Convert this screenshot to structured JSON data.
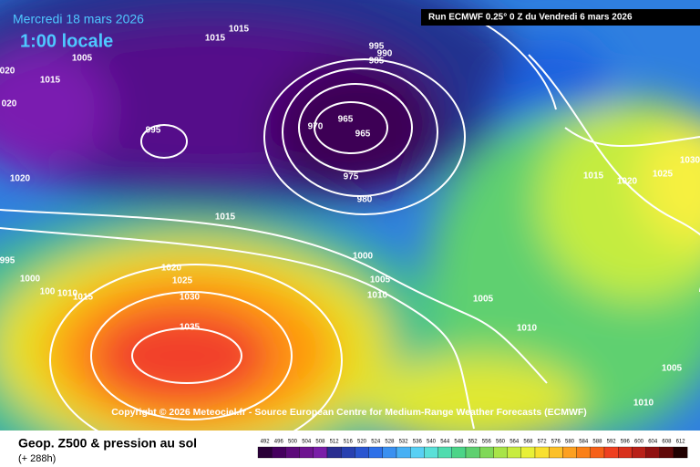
{
  "header": {
    "title": "Mercredi 18 mars 2026",
    "local_time": "1:00 locale",
    "run": "Run ECMWF 0.25° 0 Z du Vendredi 6 mars 2026"
  },
  "map": {
    "copyright": "Copyright © 2026 Meteociel.fr - Source European Centre for Medium-Range Weather Forecasts (ECMWF)",
    "isobar_labels": [
      "1015",
      "1015",
      "1005",
      "020",
      "1015",
      "020",
      "995",
      "1020",
      "995",
      "990",
      "985",
      "970",
      "965",
      "965",
      "975",
      "980",
      "1015",
      "1000",
      "1005",
      "1010",
      "995",
      "1000",
      "100",
      "1010",
      "1015",
      "1020",
      "1025",
      "1030",
      "1035",
      "1005",
      "1010",
      "1015",
      "1020",
      "1025",
      "1030",
      "1005",
      "1010"
    ]
  },
  "footer": {
    "title": "Geop. Z500 & pression au sol",
    "lead": "(+ 288h)",
    "colorbar": {
      "labels": [
        492,
        496,
        500,
        504,
        508,
        512,
        516,
        520,
        524,
        528,
        532,
        536,
        540,
        544,
        548,
        552,
        556,
        560,
        564,
        568,
        572,
        576,
        580,
        584,
        588,
        592,
        596,
        600,
        604,
        608,
        612
      ]
    }
  }
}
